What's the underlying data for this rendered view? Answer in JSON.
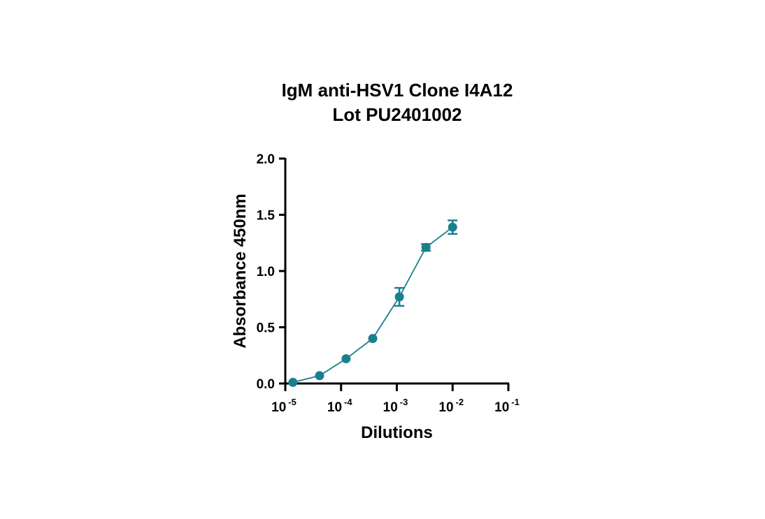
{
  "chart_data": {
    "type": "line",
    "title_lines": [
      "IgM anti-HSV1 Clone I4A12",
      "Lot PU2401002"
    ],
    "xlabel": "Dilutions",
    "ylabel": "Absorbance 450nm",
    "x_scale": "log",
    "xlim": [
      1e-05,
      0.1
    ],
    "ylim": [
      0.0,
      2.0
    ],
    "y_ticks": [
      {
        "value": 0.0,
        "label": "0.0"
      },
      {
        "value": 0.5,
        "label": "0.5"
      },
      {
        "value": 1.0,
        "label": "1.0"
      },
      {
        "value": 1.5,
        "label": "1.5"
      },
      {
        "value": 2.0,
        "label": "2.0"
      }
    ],
    "x_ticks": [
      {
        "value": 1e-05,
        "base": "10",
        "exp": "-5"
      },
      {
        "value": 0.0001,
        "base": "10",
        "exp": "-4"
      },
      {
        "value": 0.001,
        "base": "10",
        "exp": "-3"
      },
      {
        "value": 0.01,
        "base": "10",
        "exp": "-2"
      },
      {
        "value": 0.1,
        "base": "10",
        "exp": "-1"
      }
    ],
    "series": [
      {
        "color": "#1a7f8e",
        "points": [
          {
            "x": 1.37e-05,
            "y": 0.01,
            "err": 0.0
          },
          {
            "x": 4.12e-05,
            "y": 0.07,
            "err": 0.0
          },
          {
            "x": 0.000123,
            "y": 0.22,
            "err": 0.0
          },
          {
            "x": 0.00037,
            "y": 0.4,
            "err": 0.0
          },
          {
            "x": 0.00111,
            "y": 0.77,
            "err": 0.08
          },
          {
            "x": 0.00333,
            "y": 1.21,
            "err": 0.03
          },
          {
            "x": 0.01,
            "y": 1.39,
            "err": 0.06
          }
        ]
      }
    ],
    "grid": false,
    "legend": "none"
  }
}
